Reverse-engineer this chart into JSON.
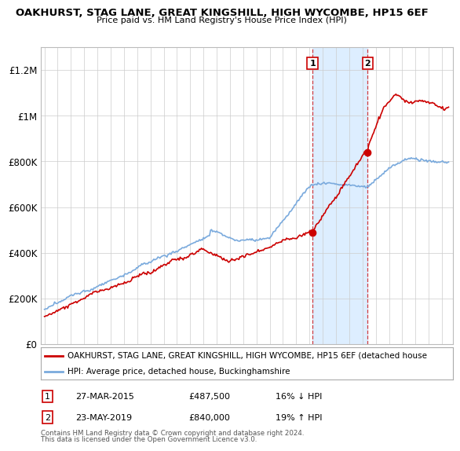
{
  "title": "OAKHURST, STAG LANE, GREAT KINGSHILL, HIGH WYCOMBE, HP15 6EF",
  "subtitle": "Price paid vs. HM Land Registry's House Price Index (HPI)",
  "ylim": [
    0,
    1300000
  ],
  "yticks": [
    0,
    200000,
    400000,
    600000,
    800000,
    1000000,
    1200000
  ],
  "ytick_labels": [
    "£0",
    "£200K",
    "£400K",
    "£600K",
    "£800K",
    "£1M",
    "£1.2M"
  ],
  "sale1_date": 2015.23,
  "sale1_price": 487500,
  "sale2_date": 2019.39,
  "sale2_price": 840000,
  "legend_line1": "OAKHURST, STAG LANE, GREAT KINGSHILL, HIGH WYCOMBE, HP15 6EF (detached house",
  "legend_line2": "HPI: Average price, detached house, Buckinghamshire",
  "footer": "Contains HM Land Registry data © Crown copyright and database right 2024.\nThis data is licensed under the Open Government Licence v3.0.",
  "line_color_red": "#cc0000",
  "line_color_blue": "#7aaadd",
  "shade_color": "#ddeeff",
  "marker_box_color": "#cc0000",
  "background_color": "#ffffff",
  "grid_color": "#cccccc",
  "xlim_left": 1994.7,
  "xlim_right": 2025.8
}
